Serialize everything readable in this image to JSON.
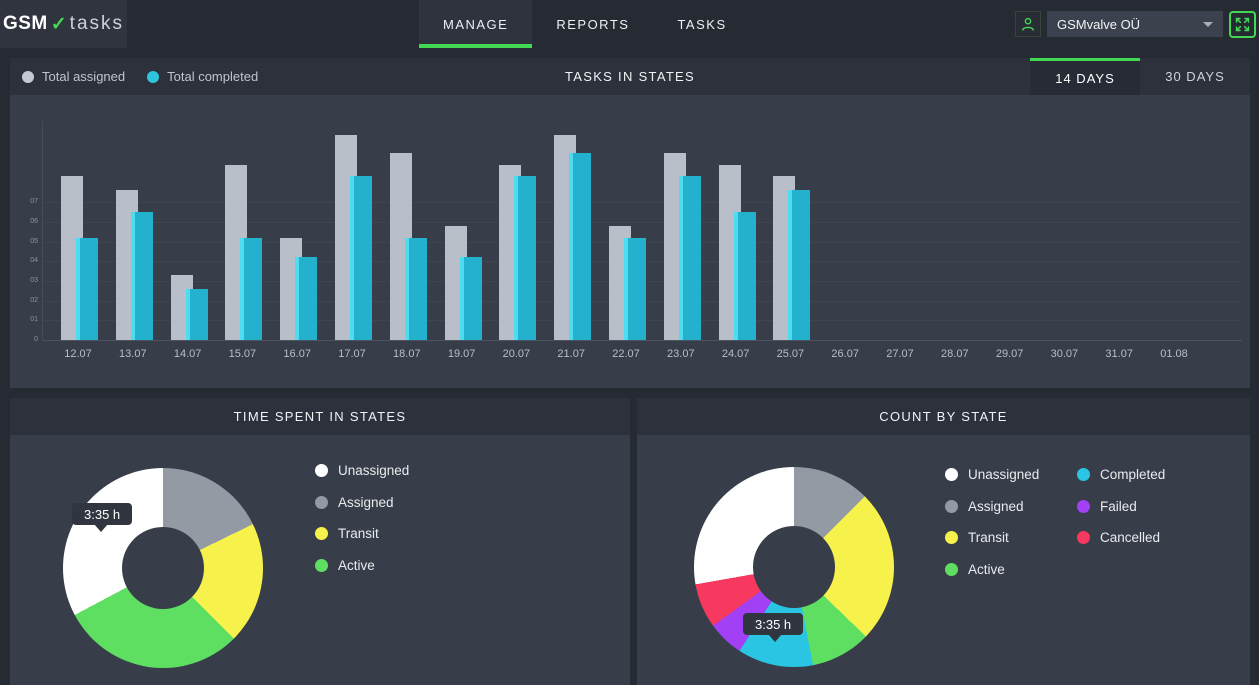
{
  "app": {
    "brand_primary": "GSM",
    "brand_check": "✓",
    "brand_secondary": "tasks"
  },
  "nav": {
    "tabs": [
      {
        "label": "MANAGE",
        "active": true
      },
      {
        "label": "REPORTS",
        "active": false
      },
      {
        "label": "TASKS",
        "active": false
      }
    ]
  },
  "account": {
    "name": "GSMvalve OÜ",
    "icons": [
      "person-icon",
      "caret-down-icon",
      "fullscreen-expand-icon"
    ]
  },
  "colors": {
    "accent_green": "#43d854",
    "page_bg": "#262a33",
    "strip_bg": "#2c313c",
    "panel_bg": "#373d49",
    "bar_assigned": "#b9bfc9",
    "bar_completed": "#23b1cd",
    "bar_completed_edge": "#4edcf2",
    "tooltip_bg": "#30353f"
  },
  "tasks_panel": {
    "title": "TASKS IN STATES",
    "legend": [
      {
        "label": "Total assigned",
        "color": "#c5cad2"
      },
      {
        "label": "Total completed",
        "color": "#2ec4dc"
      }
    ],
    "range_tabs": [
      {
        "label": "14 DAYS",
        "active": true
      },
      {
        "label": "30 DAYS",
        "active": false
      }
    ]
  },
  "time_panel": {
    "title": "TIME SPENT IN STATES",
    "tooltip": "3:35 h",
    "legend": [
      {
        "label": "Unassigned",
        "color": "#ffffff"
      },
      {
        "label": "Assigned",
        "color": "#939aa4"
      },
      {
        "label": "Transit",
        "color": "#f6f24b"
      },
      {
        "label": "Active",
        "color": "#5fdf62"
      }
    ]
  },
  "count_panel": {
    "title": "COUNT BY STATE",
    "tooltip": "3:35 h",
    "legend_col1": [
      {
        "label": "Unassigned",
        "color": "#ffffff"
      },
      {
        "label": "Assigned",
        "color": "#939aa4"
      },
      {
        "label": "Transit",
        "color": "#f6f24b"
      },
      {
        "label": "Active",
        "color": "#5fdf62"
      }
    ],
    "legend_col2": [
      {
        "label": "Completed",
        "color": "#29c5e3"
      },
      {
        "label": "Failed",
        "color": "#a240f5"
      },
      {
        "label": "Cancelled",
        "color": "#f8395f"
      }
    ]
  },
  "chart_data": [
    {
      "type": "bar",
      "title": "TASKS IN STATES",
      "categories": [
        "12.07",
        "13.07",
        "14.07",
        "15.07",
        "16.07",
        "17.07",
        "18.07",
        "19.07",
        "20.07",
        "21.07",
        "22.07",
        "23.07",
        "24.07",
        "25.07",
        "26.07",
        "27.07",
        "28.07",
        "29.07",
        "30.07",
        "31.07",
        "01.08"
      ],
      "series": [
        {
          "name": "Total assigned",
          "color": "#b9bfc9",
          "values": [
            8.3,
            7.6,
            3.3,
            8.9,
            5.2,
            10.4,
            9.5,
            5.8,
            8.9,
            10.4,
            5.8,
            9.5,
            8.9,
            8.3,
            0,
            0,
            0,
            0,
            0,
            0,
            0
          ]
        },
        {
          "name": "Total completed",
          "color": "#23b1cd",
          "values": [
            5.2,
            6.5,
            2.6,
            5.2,
            4.2,
            8.3,
            5.2,
            4.2,
            8.3,
            9.5,
            5.2,
            8.3,
            6.5,
            7.6,
            0,
            0,
            0,
            0,
            0,
            0,
            0
          ]
        }
      ],
      "y_ticks": [
        "0",
        "01",
        "02",
        "03",
        "04",
        "05",
        "06",
        "07"
      ],
      "ylim": [
        0,
        11
      ],
      "grid": true,
      "legend_position": "top-left",
      "note": "dates 26.07 through 01.08 have no bars"
    },
    {
      "type": "pie",
      "title": "TIME SPENT IN STATES",
      "donut_hole_ratio": 0.41,
      "start": "top, clockwise",
      "tooltip": {
        "text": "3:35 h",
        "points_to": "Unassigned"
      },
      "slices": [
        {
          "label": "Assigned",
          "color": "#939aa4",
          "angle_deg": 64,
          "percent": 17.8
        },
        {
          "label": "Transit",
          "color": "#f6f24b",
          "angle_deg": 71,
          "percent": 19.7
        },
        {
          "label": "Active",
          "color": "#5fdf62",
          "angle_deg": 107,
          "percent": 29.7
        },
        {
          "label": "Unassigned",
          "color": "#ffffff",
          "angle_deg": 118,
          "percent": 32.8
        }
      ]
    },
    {
      "type": "pie",
      "title": "COUNT BY STATE",
      "donut_hole_ratio": 0.41,
      "start": "top, clockwise",
      "tooltip": {
        "text": "3:35 h",
        "points_to": "Completed"
      },
      "slices": [
        {
          "label": "Assigned",
          "color": "#939aa4",
          "angle_deg": 45,
          "percent": 12.5
        },
        {
          "label": "Transit",
          "color": "#f6f24b",
          "angle_deg": 89,
          "percent": 24.7
        },
        {
          "label": "Active",
          "color": "#5fdf62",
          "angle_deg": 35,
          "percent": 9.7
        },
        {
          "label": "Completed",
          "color": "#29c5e3",
          "angle_deg": 44,
          "percent": 12.2
        },
        {
          "label": "Failed",
          "color": "#a240f5",
          "angle_deg": 21,
          "percent": 5.8
        },
        {
          "label": "Cancelled",
          "color": "#f8395f",
          "angle_deg": 26,
          "percent": 7.2
        },
        {
          "label": "Unassigned",
          "color": "#ffffff",
          "angle_deg": 100,
          "percent": 27.8
        }
      ]
    }
  ]
}
